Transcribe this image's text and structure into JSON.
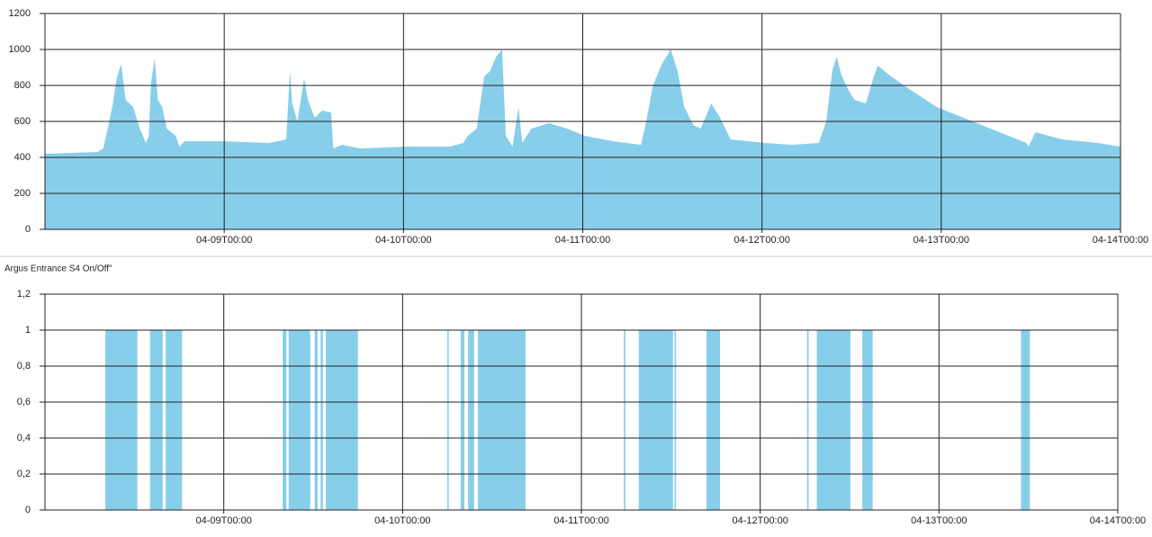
{
  "chart_data": [
    {
      "type": "area",
      "color": "#87ceeb",
      "grid": true,
      "xlim": [
        0,
        144
      ],
      "ylim": [
        0,
        1200
      ],
      "xticks": [
        {
          "value": 24,
          "label": "04-09T00:00"
        },
        {
          "value": 48,
          "label": "04-10T00:00"
        },
        {
          "value": 72,
          "label": "04-11T00:00"
        },
        {
          "value": 96,
          "label": "04-12T00:00"
        },
        {
          "value": 120,
          "label": "04-13T00:00"
        },
        {
          "value": 144,
          "label": "04-14T00:00"
        }
      ],
      "yticks": [
        0,
        200,
        400,
        600,
        800,
        1000,
        1200
      ],
      "x": [
        0,
        7,
        7.8,
        8.4,
        9,
        9.6,
        10.2,
        10.8,
        11.8,
        12.7,
        13.5,
        13.9,
        14.2,
        14.7,
        15.1,
        15.7,
        16.3,
        17.5,
        18,
        18.7,
        24,
        30,
        32.3,
        32.8,
        33.1,
        33.8,
        34.7,
        35.2,
        36.1,
        37.1,
        38.3,
        38.6,
        39.8,
        42.2,
        48.2,
        54.2,
        56,
        56.6,
        57.8,
        58.8,
        59.6,
        60.4,
        61.2,
        61.7,
        62.6,
        63.4,
        63.9,
        65.1,
        67.5,
        69.9,
        72.3,
        76,
        79.8,
        80.5,
        81.4,
        82.6,
        83.8,
        84.7,
        85.6,
        86.8,
        87.8,
        89.2,
        90.4,
        91.8,
        96.4,
        100,
        103.6,
        104.6,
        105.4,
        106,
        106.6,
        107.5,
        108.4,
        109.9,
        110.9,
        111.5,
        113.3,
        115.7,
        119.4,
        123,
        126.6,
        131.4,
        131.7,
        132.6,
        136.2,
        141,
        144
      ],
      "values": [
        420,
        430,
        450,
        560,
        680,
        840,
        920,
        720,
        680,
        560,
        480,
        520,
        820,
        950,
        720,
        680,
        560,
        520,
        460,
        490,
        490,
        480,
        500,
        880,
        700,
        600,
        840,
        720,
        620,
        660,
        650,
        450,
        470,
        450,
        460,
        460,
        480,
        520,
        560,
        850,
        880,
        960,
        1000,
        520,
        460,
        680,
        480,
        560,
        590,
        560,
        520,
        490,
        470,
        600,
        800,
        920,
        1000,
        880,
        680,
        580,
        560,
        700,
        620,
        500,
        480,
        470,
        480,
        600,
        880,
        960,
        860,
        780,
        720,
        700,
        840,
        910,
        850,
        780,
        680,
        620,
        560,
        480,
        460,
        540,
        500,
        480,
        460
      ]
    },
    {
      "type": "step",
      "title": "Argus Entrance S4 On/Off\"",
      "color": "#87ceeb",
      "grid": true,
      "xlim": [
        0,
        144
      ],
      "ylim": [
        0,
        1.2
      ],
      "xticks": [
        {
          "value": 24,
          "label": "04-09T00:00"
        },
        {
          "value": 48,
          "label": "04-10T00:00"
        },
        {
          "value": 72,
          "label": "04-11T00:00"
        },
        {
          "value": 96,
          "label": "04-12T00:00"
        },
        {
          "value": 120,
          "label": "04-13T00:00"
        },
        {
          "value": 144,
          "label": "04-14T00:00"
        }
      ],
      "yticks": [
        0,
        {
          "value": 0.2,
          "label": "0,2"
        },
        {
          "value": 0.4,
          "label": "0,4"
        },
        {
          "value": 0.6,
          "label": "0,6"
        },
        {
          "value": 0.8,
          "label": "0,8"
        },
        1,
        {
          "value": 1.2,
          "label": "1,2"
        }
      ],
      "x": [
        0,
        8.1,
        12.4,
        14.1,
        15.8,
        16.2,
        18.4,
        31.9,
        32.4,
        32.7,
        35.6,
        36.2,
        36.6,
        37.0,
        37.3,
        37.7,
        42.0,
        54.0,
        54.2,
        55.8,
        56.3,
        56.8,
        57.6,
        58.1,
        64.5,
        77.7,
        77.9,
        79.7,
        84.3,
        84.5,
        84.7,
        88.8,
        90.6,
        102.3,
        102.5,
        103.6,
        108.1,
        109.7,
        111.1,
        131.0,
        132.2,
        144
      ],
      "values": [
        0,
        1,
        0,
        1,
        0,
        1,
        0,
        1,
        0,
        1,
        0,
        1,
        0,
        1,
        0,
        1,
        0,
        1,
        0,
        1,
        0,
        1,
        0,
        1,
        0,
        1,
        0,
        1,
        0,
        1,
        0,
        1,
        0,
        1,
        0,
        1,
        0,
        1,
        0,
        1,
        0,
        0
      ]
    }
  ]
}
